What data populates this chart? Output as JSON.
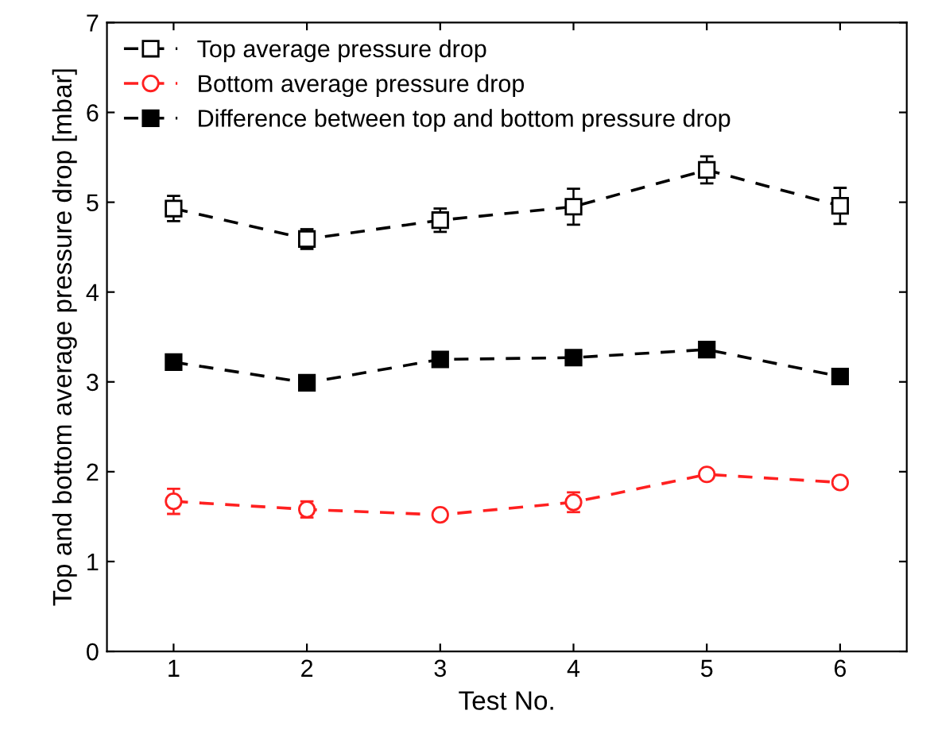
{
  "chart_data": {
    "type": "line",
    "xlabel": "Test No.",
    "ylabel": "Top and bottom average pressure drop [mbar]",
    "x": [
      1,
      2,
      3,
      4,
      5,
      6
    ],
    "series": [
      {
        "name": "Top average pressure drop",
        "color": "#000000",
        "marker": "square",
        "values": [
          4.93,
          4.59,
          4.8,
          4.95,
          5.36,
          4.96
        ],
        "errors": [
          0.14,
          0.11,
          0.13,
          0.2,
          0.15,
          0.2
        ]
      },
      {
        "name": "Bottom average pressure drop",
        "color": "#ff2020",
        "marker": "circle",
        "values": [
          1.67,
          1.58,
          1.52,
          1.66,
          1.97,
          1.88
        ],
        "errors": [
          0.14,
          0.09,
          0.03,
          0.11,
          0.05,
          0.04
        ]
      },
      {
        "name": "Difference between top and bottom pressure drop",
        "color": "#000000",
        "marker": "square",
        "values": [
          3.22,
          2.99,
          3.25,
          3.27,
          3.36,
          3.06
        ]
      }
    ],
    "line_style": "dashed",
    "xlim": [
      0.5,
      6.5
    ],
    "ylim": [
      0,
      7
    ],
    "xticks": [
      1,
      2,
      3,
      4,
      5,
      6
    ],
    "yticks": [
      0,
      1,
      2,
      3,
      4,
      5,
      6,
      7
    ],
    "grid": false,
    "legend": "top left"
  }
}
